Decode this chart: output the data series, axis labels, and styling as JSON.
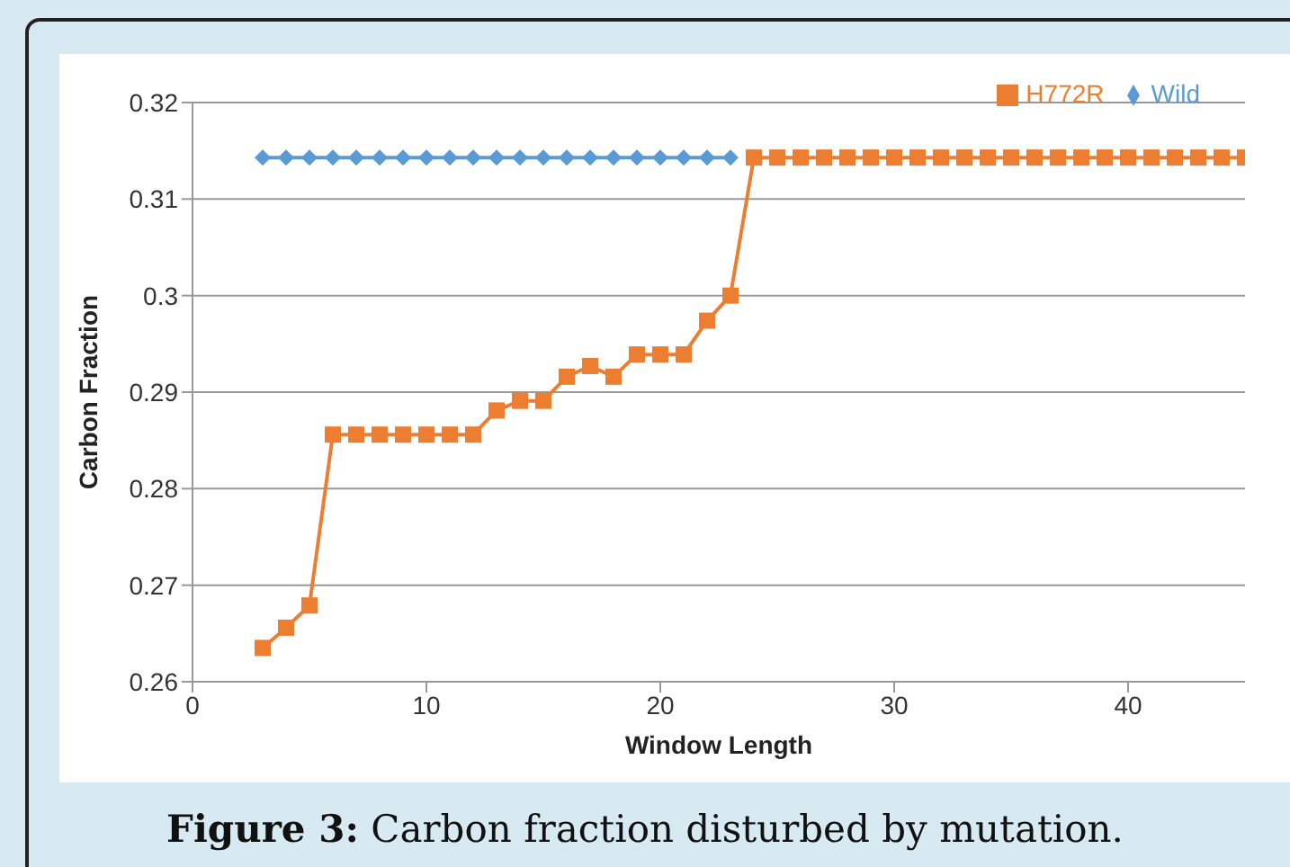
{
  "chart_data": {
    "type": "line",
    "xlabel": "Window Length",
    "ylabel": "Carbon Fraction",
    "annotations": [
      "Figure 3: Carbon fraction disturbed by mutation."
    ],
    "x": [
      3,
      4,
      5,
      6,
      7,
      8,
      9,
      10,
      11,
      12,
      13,
      14,
      15,
      16,
      17,
      18,
      19,
      20,
      21,
      22,
      23,
      24,
      25,
      26,
      27,
      28,
      29,
      30,
      31,
      32,
      33,
      34,
      35,
      36,
      37,
      38,
      39,
      40,
      41,
      42,
      43,
      44,
      45
    ],
    "series": [
      {
        "name": "Wild",
        "color": "#5b9bd5",
        "marker": "diamond",
        "values": [
          0.3143,
          0.3143,
          0.3143,
          0.3143,
          0.3143,
          0.3143,
          0.3143,
          0.3143,
          0.3143,
          0.3143,
          0.3143,
          0.3143,
          0.3143,
          0.3143,
          0.3143,
          0.3143,
          0.3143,
          0.3143,
          0.3143,
          0.3143,
          0.3143,
          null,
          null,
          null,
          null,
          null,
          null,
          null,
          null,
          null,
          null,
          null,
          null,
          null,
          null,
          null,
          null,
          null,
          null,
          null,
          null,
          null,
          null
        ]
      },
      {
        "name": "H772R",
        "color": "#ed7d31",
        "marker": "square",
        "values": [
          0.2635,
          0.2656,
          0.2679,
          0.2856,
          0.2856,
          0.2856,
          0.2856,
          0.2856,
          0.2856,
          0.2856,
          0.2881,
          0.2891,
          0.2891,
          0.2916,
          0.2927,
          0.2916,
          0.2939,
          0.2939,
          0.2939,
          0.2974,
          0.3,
          0.3143,
          0.3143,
          0.3143,
          0.3143,
          0.3143,
          0.3143,
          0.3143,
          0.3143,
          0.3143,
          0.3143,
          0.3143,
          0.3143,
          0.3143,
          0.3143,
          0.3143,
          0.3143,
          0.3143,
          0.3143,
          0.3143,
          0.3143,
          0.3143,
          0.3143
        ]
      }
    ],
    "xlim": [
      0,
      45
    ],
    "xticks": [
      0,
      10,
      20,
      30,
      40
    ],
    "ylim": [
      0.26,
      0.32
    ],
    "yticks": [
      0.26,
      0.27,
      0.28,
      0.29,
      0.3,
      0.31,
      0.32
    ],
    "grid": "y",
    "legend": "top right",
    "line_style": "solid"
  }
}
